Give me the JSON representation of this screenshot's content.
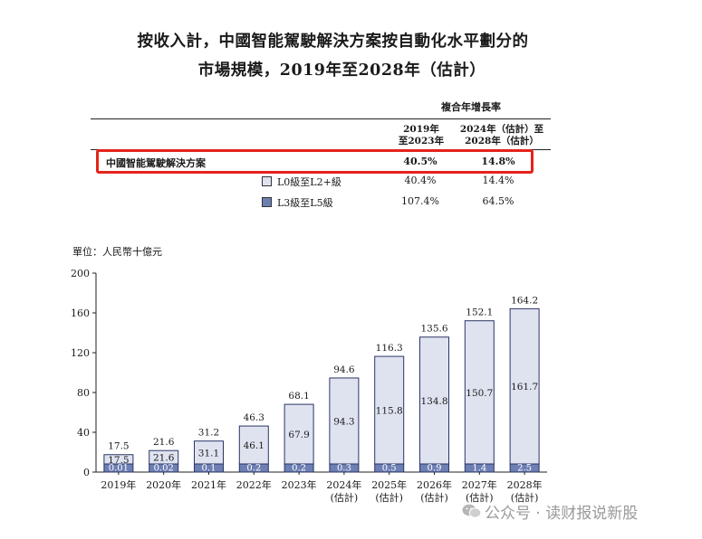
{
  "title_line1": "按收入計，中國智能駕駛解決方案按自動化水平劃分的",
  "title_line2": "市場規模，2019年至2028年（估計）",
  "cagr_table": {
    "header": "複合年增長率",
    "col1_line1": "2019年",
    "col1_line2": "至2023年",
    "col2_line1": "2024年（估計）至",
    "col2_line2": "2028年（估計）",
    "rows": [
      {
        "label": "中國智能駕駛解決方案",
        "c1": "40.5%",
        "c2": "14.8%"
      },
      {
        "label": "L0級至L2+級",
        "c1": "40.4%",
        "c2": "14.4%"
      },
      {
        "label": "L3級至L5級",
        "c1": "107.4%",
        "c2": "64.5%"
      }
    ]
  },
  "unit_label": "單位：人民幣十億元",
  "watermark": "公众号 · 读财报说新股",
  "colors": {
    "l0_l2": "#dfe3f0",
    "l3_l5": "#6d7fb3",
    "highlight": "#e5231b"
  },
  "chart_data": {
    "type": "bar",
    "stacked": true,
    "categories": [
      "2019年",
      "2020年",
      "2021年",
      "2022年",
      "2023年",
      "2024年",
      "2025年",
      "2026年",
      "2027年",
      "2028年"
    ],
    "category_sublabels": [
      "",
      "",
      "",
      "",
      "",
      "(估計)",
      "(估計)",
      "(估計)",
      "(估計)",
      "(估計)"
    ],
    "series": [
      {
        "name": "L0級至L2+級",
        "values": [
          17.5,
          21.6,
          31.1,
          46.1,
          67.9,
          94.3,
          115.8,
          134.8,
          150.7,
          161.7
        ]
      },
      {
        "name": "L3級至L5級",
        "values": [
          0.01,
          0.02,
          0.1,
          0.2,
          0.2,
          0.3,
          0.5,
          0.9,
          1.4,
          2.5
        ]
      }
    ],
    "series_labels": [
      [
        "17.5",
        "21.6",
        "31.1",
        "46.1",
        "67.9",
        "94.3",
        "115.8",
        "134.8",
        "150.7",
        "161.7"
      ],
      [
        "0.01",
        "0.02",
        "0.1",
        "0.2",
        "0.2",
        "0.3",
        "0.5",
        "0.9",
        "1.4",
        "2.5"
      ]
    ],
    "totals": [
      "17.5",
      "21.6",
      "31.2",
      "46.3",
      "68.1",
      "94.6",
      "116.3",
      "135.6",
      "152.1",
      "164.2"
    ],
    "yticks": [
      0,
      40,
      80,
      120,
      160,
      200
    ],
    "ylim": [
      0,
      200
    ],
    "ylabel": "單位：人民幣十億元",
    "grid": false,
    "legend": "top-center"
  }
}
